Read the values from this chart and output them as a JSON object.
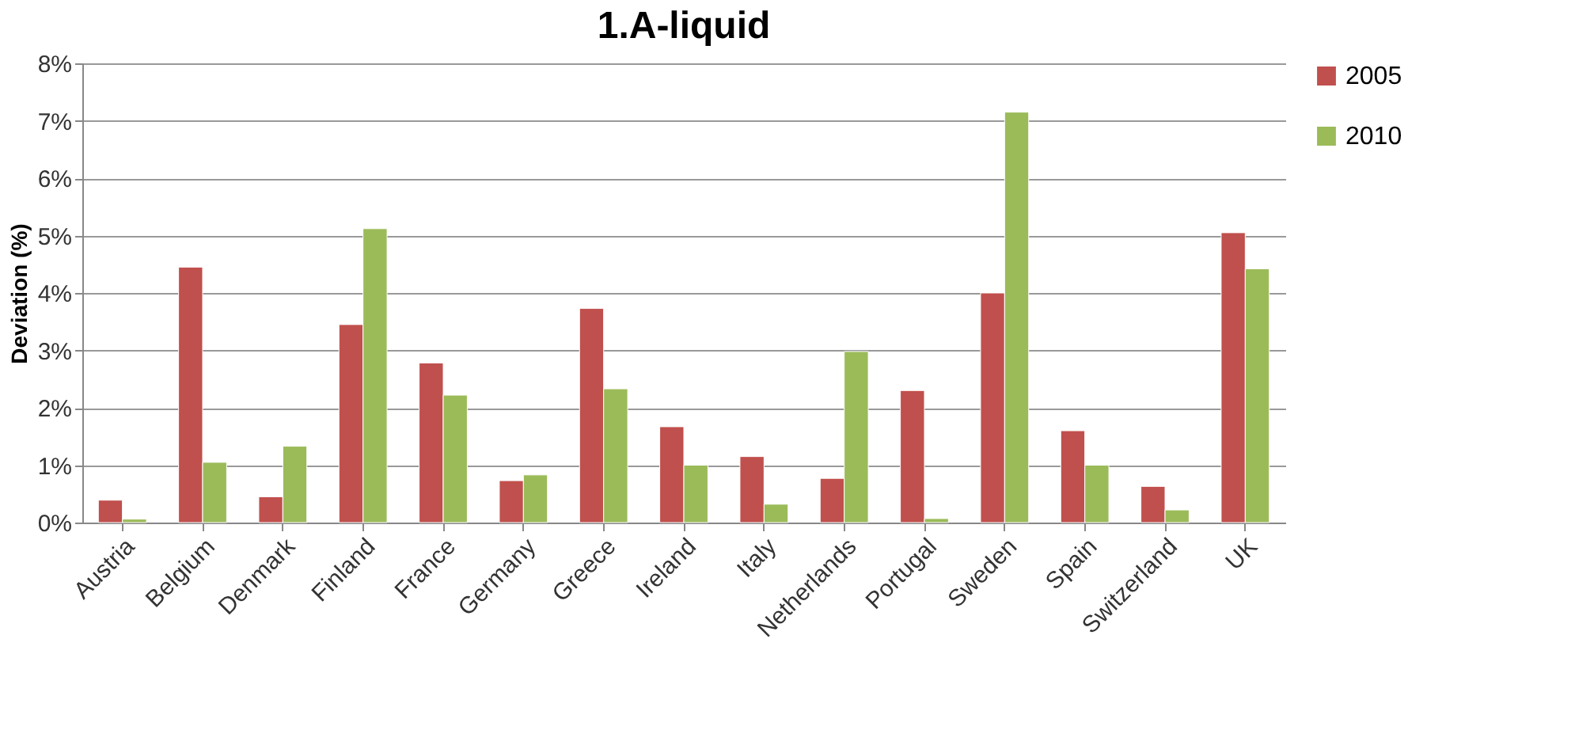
{
  "chart_data": {
    "type": "bar",
    "title": "1.A-liquid",
    "ylabel": "Deviation (%)",
    "categories": [
      "Austria",
      "Belgium",
      "Denmark",
      "Finland",
      "France",
      "Germany",
      "Greece",
      "Ireland",
      "Italy",
      "Netherlands",
      "Portugal",
      "Sweden",
      "Spain",
      "Switzerland",
      "UK"
    ],
    "series": [
      {
        "name": "2005",
        "color": "#c0504d",
        "values": [
          0.39,
          4.45,
          0.45,
          3.45,
          2.78,
          0.73,
          3.73,
          1.67,
          1.15,
          0.77,
          2.3,
          4.0,
          1.6,
          0.63,
          5.05
        ]
      },
      {
        "name": "2010",
        "color": "#9bbb59",
        "values": [
          0.06,
          1.05,
          1.33,
          5.12,
          2.22,
          0.83,
          2.33,
          1.0,
          0.32,
          2.98,
          0.07,
          7.15,
          1.0,
          0.22,
          4.42
        ]
      }
    ],
    "ylim": [
      0,
      8
    ],
    "yticks": [
      {
        "value": 0,
        "label": "0%"
      },
      {
        "value": 1,
        "label": "1%"
      },
      {
        "value": 2,
        "label": "2%"
      },
      {
        "value": 3,
        "label": "3%"
      },
      {
        "value": 4,
        "label": "4%"
      },
      {
        "value": 5,
        "label": "5%"
      },
      {
        "value": 6,
        "label": "6%"
      },
      {
        "value": 7,
        "label": "7%"
      },
      {
        "value": 8,
        "label": "8%"
      }
    ],
    "grid": "y",
    "legend": "right"
  }
}
